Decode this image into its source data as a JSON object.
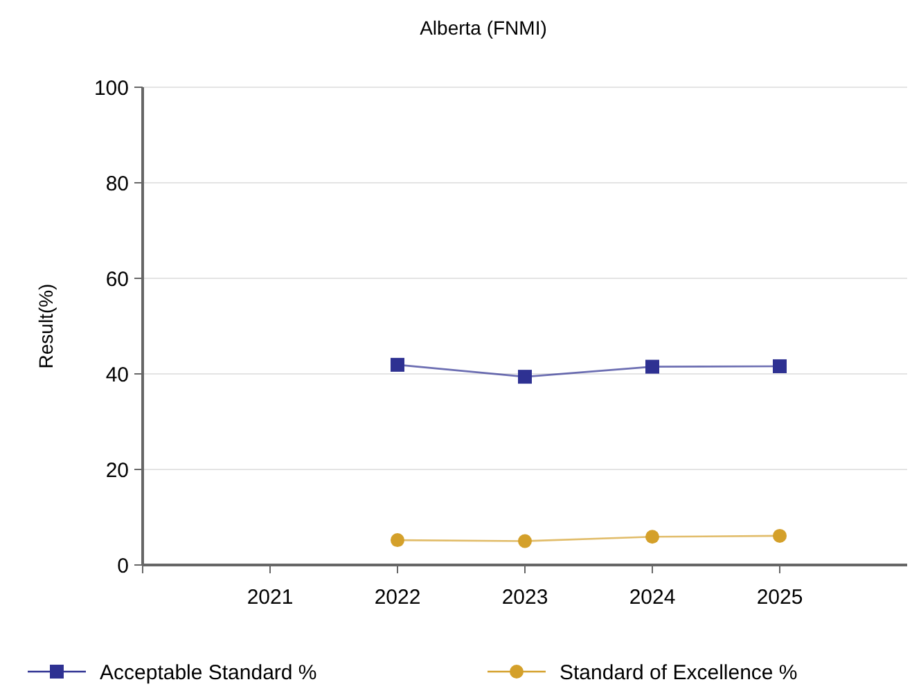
{
  "chart_data": {
    "type": "line",
    "title": "Alberta (FNMI)",
    "ylabel": "Result(%)",
    "categories": [
      "2021",
      "2022",
      "2023",
      "2024",
      "2025"
    ],
    "ylim": [
      0,
      100
    ],
    "yticks": [
      0,
      20,
      40,
      60,
      80,
      100
    ],
    "grid": "y",
    "legend": "bottom",
    "series": [
      {
        "name": "Acceptable Standard %",
        "color": "#2e3192",
        "marker": "square",
        "values": [
          null,
          41.9,
          39.4,
          41.5,
          41.6
        ]
      },
      {
        "name": "Standard of Excellence %",
        "color": "#d4a02a",
        "marker": "circle",
        "values": [
          null,
          5.2,
          5.0,
          5.9,
          6.1
        ]
      }
    ]
  }
}
